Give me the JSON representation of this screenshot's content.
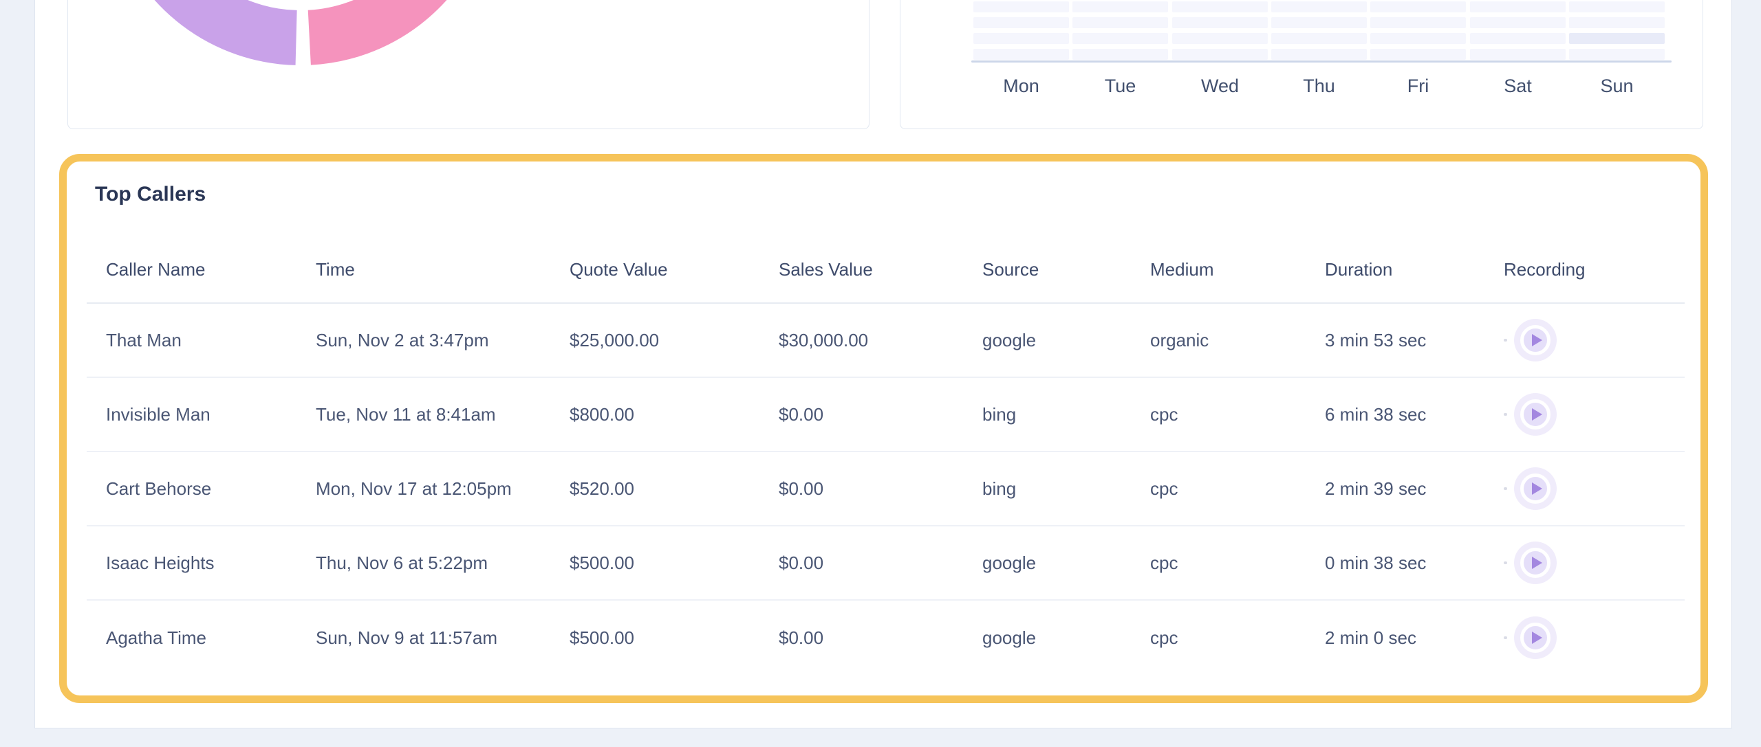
{
  "colors": {
    "page_bg": "#edf1f8",
    "content_bg": "#ffffff",
    "card_border": "#e1e7f1",
    "highlight_border": "#f6c45a",
    "title_text": "#2a3655",
    "header_text": "#3e4b6b",
    "cell_text": "#4a5674",
    "donut_purple": "#c9a2e9",
    "donut_pink": "#f593bd",
    "heatmap_cell": "#f5f6fd",
    "heatmap_cell_active": "#e8ebf8",
    "axis_line": "#ccd6e9",
    "play_outer": "#f0ecfb",
    "play_inner": "#e5dff9",
    "play_triangle": "#a387e0"
  },
  "chart_data": [
    {
      "type": "pie",
      "title": "",
      "note": "Donut chart cropped by top of viewport; only bottom arc of ring visible, no labels or values rendered",
      "segments": [
        {
          "label": "",
          "color": "#c9a2e9",
          "visible_sweep_deg": 71
        },
        {
          "label": "",
          "color": "#f593bd",
          "visible_sweep_deg": 69
        }
      ],
      "donut": true,
      "legend": "off"
    },
    {
      "type": "heatmap",
      "title": "",
      "note": "Weekly heatmap cropped by top of viewport; 4 rows of cells visible above x-axis; 1 = slightly darker cell",
      "categories_x": [
        "Mon",
        "Tue",
        "Wed",
        "Thu",
        "Fri",
        "Sat",
        "Sun"
      ],
      "visible_rows": 4,
      "values": [
        [
          0,
          0,
          0,
          0,
          0,
          0,
          0
        ],
        [
          0,
          0,
          0,
          0,
          0,
          0,
          0
        ],
        [
          0,
          0,
          0,
          0,
          0,
          0,
          1
        ],
        [
          0,
          0,
          0,
          0,
          0,
          0,
          0
        ]
      ],
      "legend": "off",
      "grid": "off"
    }
  ],
  "top_callers": {
    "title": "Top Callers",
    "columns": [
      "Caller Name",
      "Time",
      "Quote Value",
      "Sales Value",
      "Source",
      "Medium",
      "Duration",
      "Recording"
    ],
    "rows": [
      {
        "caller_name": "That Man",
        "time": "Sun, Nov 2 at 3:47pm",
        "quote_value": "$25,000.00",
        "sales_value": "$30,000.00",
        "source": "google",
        "medium": "organic",
        "duration": "3 min 53 sec"
      },
      {
        "caller_name": "Invisible Man",
        "time": "Tue, Nov 11 at 8:41am",
        "quote_value": "$800.00",
        "sales_value": "$0.00",
        "source": "bing",
        "medium": "cpc",
        "duration": "6 min 38 sec"
      },
      {
        "caller_name": "Cart Behorse",
        "time": "Mon, Nov 17 at 12:05pm",
        "quote_value": "$520.00",
        "sales_value": "$0.00",
        "source": "bing",
        "medium": "cpc",
        "duration": "2 min 39 sec"
      },
      {
        "caller_name": "Isaac Heights",
        "time": "Thu, Nov 6 at 5:22pm",
        "quote_value": "$500.00",
        "sales_value": "$0.00",
        "source": "google",
        "medium": "cpc",
        "duration": "0 min 38 sec"
      },
      {
        "caller_name": "Agatha Time",
        "time": "Sun, Nov 9 at 11:57am",
        "quote_value": "$500.00",
        "sales_value": "$0.00",
        "source": "google",
        "medium": "cpc",
        "duration": "2 min 0 sec"
      }
    ]
  }
}
